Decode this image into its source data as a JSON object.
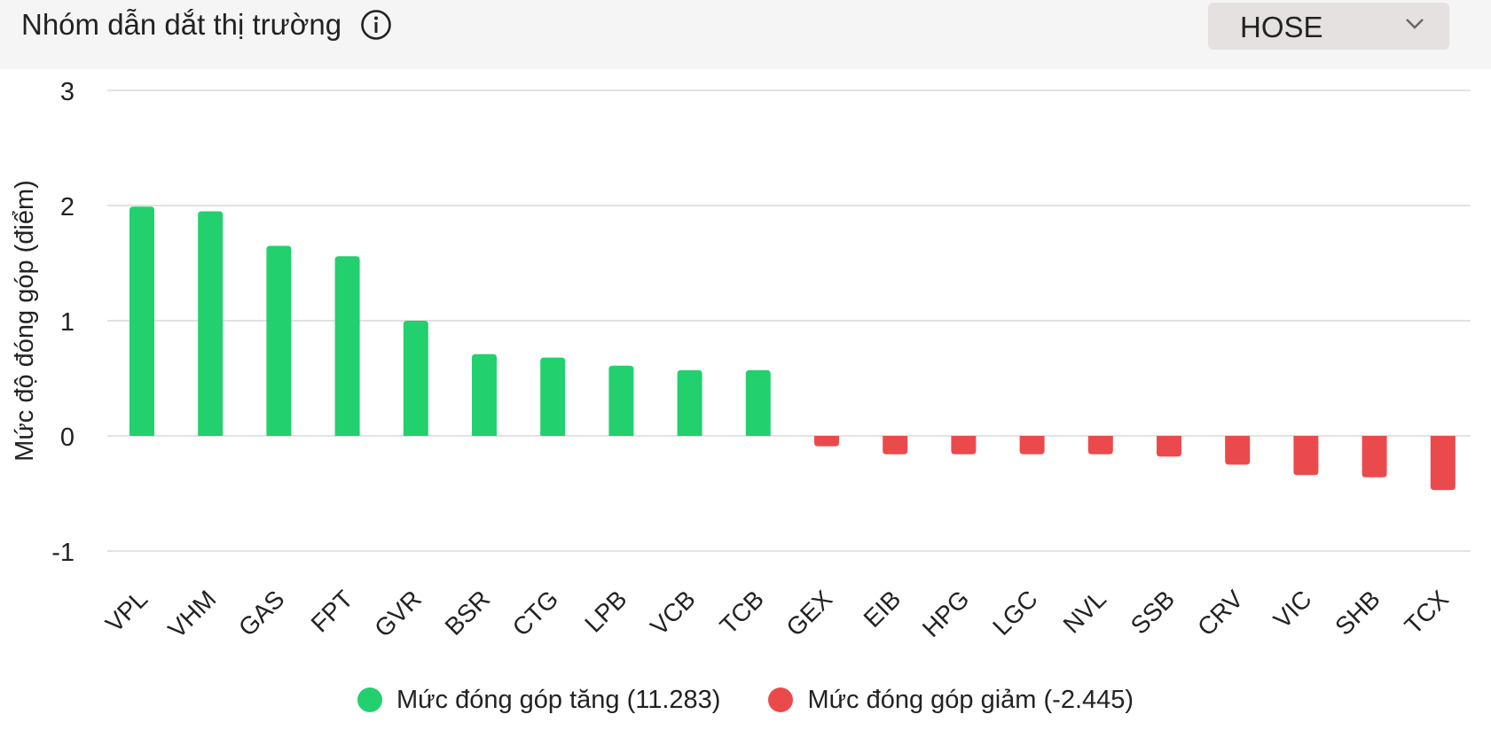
{
  "header": {
    "title": "Nhóm dẫn dắt thị trường",
    "info_icon": "info-circle-icon",
    "exchange_select": {
      "value": "HOSE",
      "icon": "chevron-down-icon"
    }
  },
  "colors": {
    "up": "#22d06e",
    "down": "#eb4a4c",
    "grid": "#e2e2e2",
    "text": "#222222"
  },
  "chart_data": {
    "type": "bar",
    "title": "",
    "xlabel": "",
    "ylabel": "Mức độ đóng góp (điểm)",
    "ylim": [
      -1,
      3
    ],
    "yticks": [
      3,
      2,
      1,
      0,
      -1
    ],
    "ytick_labels": [
      "3",
      "2",
      "1",
      "0",
      "-1"
    ],
    "grid": true,
    "legend_position": "bottom-center",
    "categories": [
      "VPL",
      "VHM",
      "GAS",
      "FPT",
      "GVR",
      "BSR",
      "CTG",
      "LPB",
      "VCB",
      "TCB",
      "GEX",
      "EIB",
      "HPG",
      "LGC",
      "NVL",
      "SSB",
      "CRV",
      "VIC",
      "SHB",
      "TCX"
    ],
    "values": [
      1.99,
      1.95,
      1.65,
      1.56,
      1.0,
      0.71,
      0.68,
      0.61,
      0.57,
      0.57,
      -0.09,
      -0.16,
      -0.16,
      -0.16,
      -0.16,
      -0.18,
      -0.25,
      -0.34,
      -0.36,
      -0.47
    ],
    "series": [
      {
        "name": "Mức đóng góp tăng (11.283)",
        "color": "#22d06e"
      },
      {
        "name": "Mức đóng góp giảm (-2.445)",
        "color": "#eb4a4c"
      }
    ]
  }
}
